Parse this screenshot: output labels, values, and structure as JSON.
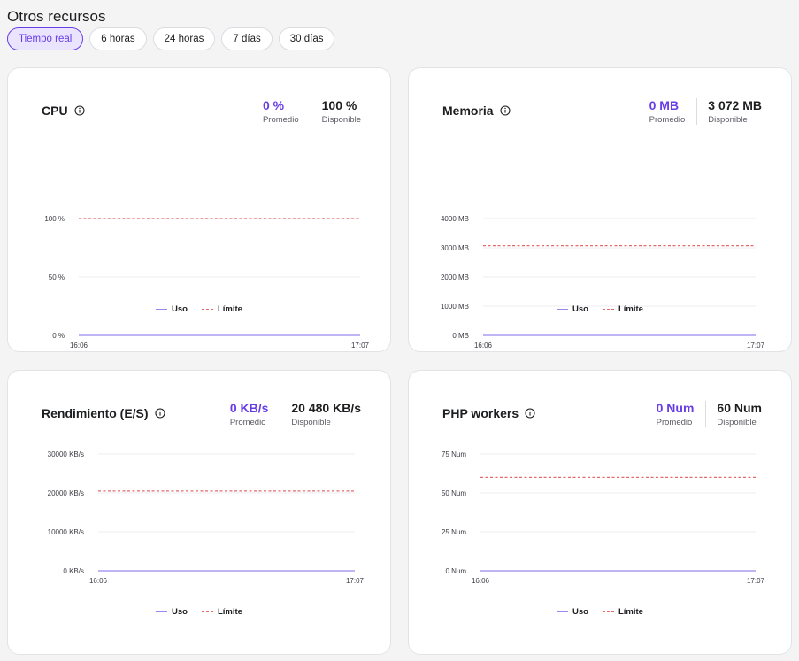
{
  "page": {
    "title": "Otros recursos",
    "ranges": [
      {
        "label": "Tiempo real",
        "active": true
      },
      {
        "label": "6 horas",
        "active": false
      },
      {
        "label": "24 horas",
        "active": false
      },
      {
        "label": "7 días",
        "active": false
      },
      {
        "label": "30 días",
        "active": false
      }
    ]
  },
  "colors": {
    "accent": "#673de6",
    "usage_line": "#9a86ef",
    "limit_line": "#e26a6a"
  },
  "legend": {
    "usage": "Uso",
    "limit": "Límite"
  },
  "cards": [
    {
      "id": "cpu",
      "title": "CPU",
      "avg_value": "0 %",
      "avg_label": "Promedio",
      "avail_value": "100 %",
      "avail_label": "Disponible"
    },
    {
      "id": "memory",
      "title": "Memoria",
      "avg_value": "0 MB",
      "avg_label": "Promedio",
      "avail_value": "3 072 MB",
      "avail_label": "Disponible"
    },
    {
      "id": "throughput",
      "title": "Rendimiento (E/S)",
      "avg_value": "0 KB/s",
      "avg_label": "Promedio",
      "avail_value": "20 480 KB/s",
      "avail_label": "Disponible"
    },
    {
      "id": "php",
      "title": "PHP workers",
      "avg_value": "0 Num",
      "avg_label": "Promedio",
      "avail_value": "60 Num",
      "avail_label": "Disponible"
    }
  ],
  "chart_data": [
    {
      "type": "line",
      "title": "CPU",
      "x": [
        "16:06",
        "17:07"
      ],
      "ylim": [
        0,
        100
      ],
      "yticks": [
        0,
        50,
        100
      ],
      "ytick_labels": [
        "0 %",
        "50 %",
        "100 %"
      ],
      "series": [
        {
          "name": "Uso",
          "values": [
            0,
            0
          ]
        },
        {
          "name": "Límite",
          "values": [
            100,
            100
          ]
        }
      ],
      "legend": "bottom-center"
    },
    {
      "type": "line",
      "title": "Memoria",
      "x": [
        "16:06",
        "17:07"
      ],
      "ylim": [
        0,
        4000
      ],
      "yticks": [
        0,
        1000,
        2000,
        3000,
        4000
      ],
      "ytick_labels": [
        "0 MB",
        "1000 MB",
        "2000 MB",
        "3000 MB",
        "4000 MB"
      ],
      "series": [
        {
          "name": "Uso",
          "values": [
            0,
            0
          ]
        },
        {
          "name": "Límite",
          "values": [
            3072,
            3072
          ]
        }
      ],
      "legend": "bottom-center"
    },
    {
      "type": "line",
      "title": "Rendimiento (E/S)",
      "x": [
        "16:06",
        "17:07"
      ],
      "ylim": [
        0,
        30000
      ],
      "yticks": [
        0,
        10000,
        20000,
        30000
      ],
      "ytick_labels": [
        "0 KB/s",
        "10000 KB/s",
        "20000 KB/s",
        "30000 KB/s"
      ],
      "series": [
        {
          "name": "Uso",
          "values": [
            0,
            0
          ]
        },
        {
          "name": "Límite",
          "values": [
            20480,
            20480
          ]
        }
      ],
      "legend": "bottom-center"
    },
    {
      "type": "line",
      "title": "PHP workers",
      "x": [
        "16:06",
        "17:07"
      ],
      "ylim": [
        0,
        75
      ],
      "yticks": [
        0,
        25,
        50,
        75
      ],
      "ytick_labels": [
        "0 Num",
        "25 Num",
        "50 Num",
        "75 Num"
      ],
      "series": [
        {
          "name": "Uso",
          "values": [
            0,
            0
          ]
        },
        {
          "name": "Límite",
          "values": [
            60,
            60
          ]
        }
      ],
      "legend": "bottom-center"
    }
  ]
}
